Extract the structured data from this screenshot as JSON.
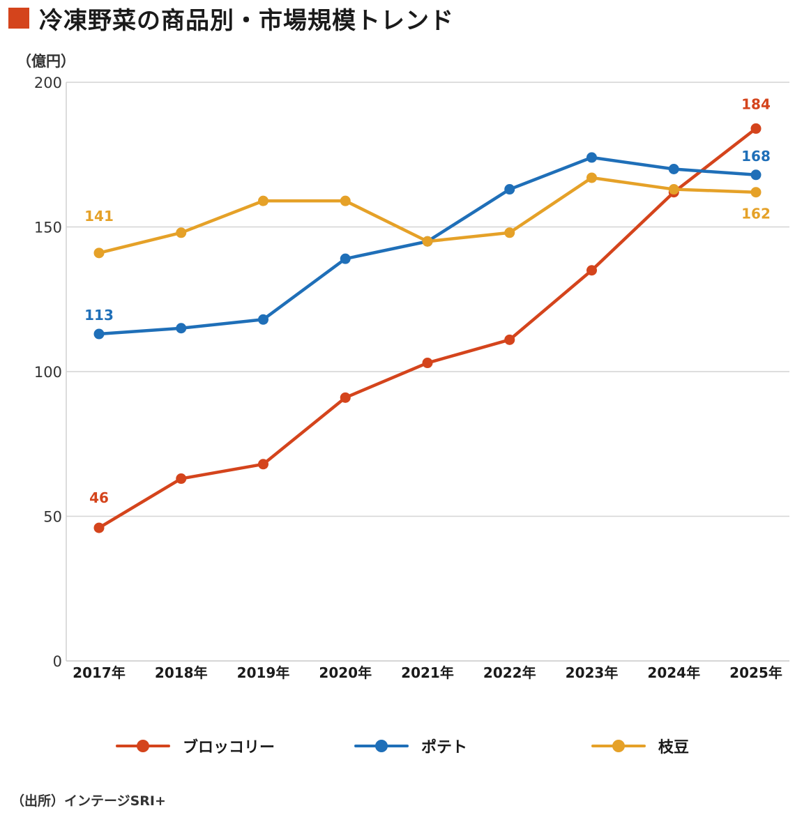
{
  "header": {
    "title": "冷凍野菜の商品別・市場規模トレンド",
    "unit": "（億円）"
  },
  "source": "（出所）インテージSRI+",
  "chart_data": {
    "type": "line",
    "title": "冷凍野菜の商品別・市場規模トレンド",
    "xlabel": "",
    "ylabel": "（億円）",
    "ylim": [
      0,
      200
    ],
    "yticks": [
      0,
      50,
      100,
      150,
      200
    ],
    "grid": true,
    "legend_position": "bottom",
    "categories": [
      "2017年",
      "2018年",
      "2019年",
      "2020年",
      "2021年",
      "2022年",
      "2023年",
      "2024年",
      "2025年"
    ],
    "series": [
      {
        "name": "ブロッコリー",
        "color": "#d4441c",
        "values": [
          46,
          63,
          68,
          91,
          103,
          111,
          135,
          162,
          184
        ],
        "labels": {
          "0": "46",
          "8": "184"
        }
      },
      {
        "name": "ポテト",
        "color": "#1f6fb8",
        "values": [
          113,
          115,
          118,
          139,
          145,
          163,
          174,
          170,
          168
        ],
        "labels": {
          "0": "113",
          "8": "168"
        }
      },
      {
        "name": "枝豆",
        "color": "#e5a128",
        "values": [
          141,
          148,
          159,
          159,
          145,
          148,
          167,
          163,
          162
        ],
        "labels": {
          "0": "141",
          "8": "162"
        }
      }
    ]
  }
}
